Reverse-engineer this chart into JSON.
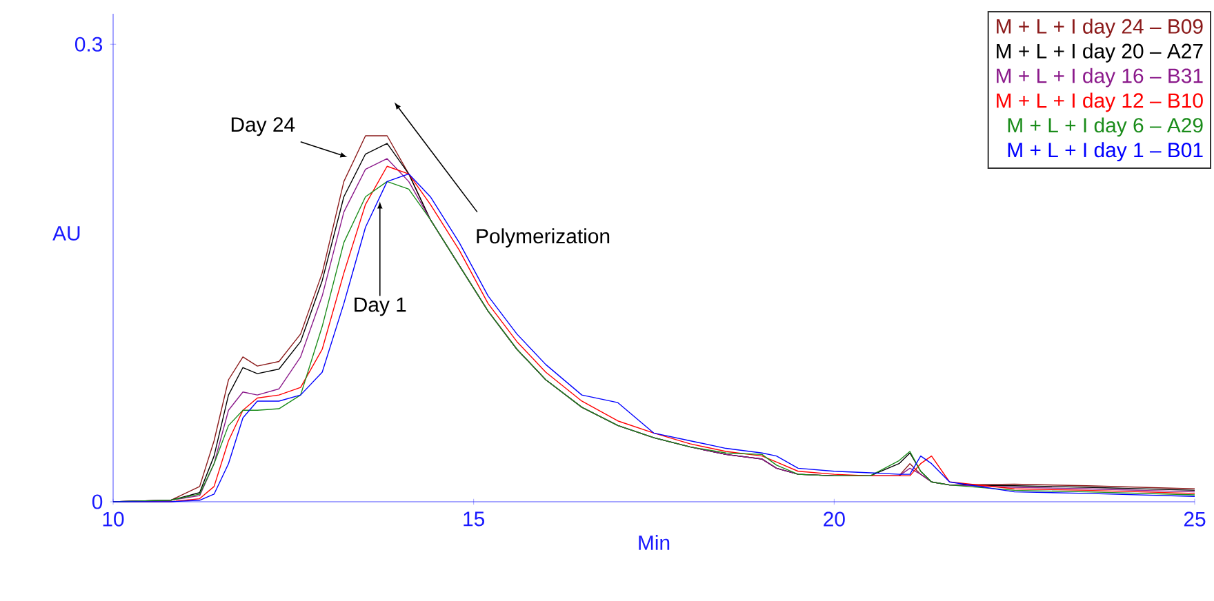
{
  "chart_data": {
    "type": "line",
    "xlabel": "Min",
    "ylabel": "AU",
    "x": [
      10,
      10.8,
      11.2,
      11.4,
      11.6,
      11.8,
      12.0,
      12.3,
      12.6,
      12.9,
      13.2,
      13.5,
      13.8,
      14.1,
      14.4,
      14.8,
      15.2,
      15.6,
      16.0,
      16.5,
      17.0,
      17.5,
      18.0,
      18.5,
      19.0,
      19.2,
      19.5,
      20.0,
      20.5,
      20.9,
      21.05,
      21.2,
      21.35,
      21.6,
      22.5,
      23.5,
      25
    ],
    "series": [
      {
        "name": "M + L + I day 24 – B09",
        "color": "#8b1a1a",
        "values": [
          0,
          0.001,
          0.01,
          0.04,
          0.08,
          0.095,
          0.089,
          0.092,
          0.11,
          0.15,
          0.21,
          0.24,
          0.24,
          0.215,
          0.185,
          0.155,
          0.125,
          0.1,
          0.08,
          0.062,
          0.05,
          0.042,
          0.036,
          0.031,
          0.028,
          0.022,
          0.018,
          0.017,
          0.017,
          0.017,
          0.025,
          0.018,
          0.013,
          0.011,
          0.0115,
          0.0105,
          0.0085
        ]
      },
      {
        "name": "M + L + I day 20 – A27",
        "color": "#000000",
        "values": [
          0,
          0.001,
          0.006,
          0.03,
          0.07,
          0.088,
          0.084,
          0.087,
          0.105,
          0.145,
          0.2,
          0.228,
          0.235,
          0.215,
          0.185,
          0.155,
          0.125,
          0.1,
          0.08,
          0.062,
          0.05,
          0.042,
          0.036,
          0.031,
          0.028,
          0.022,
          0.018,
          0.017,
          0.017,
          0.025,
          0.032,
          0.02,
          0.013,
          0.011,
          0.0105,
          0.0095,
          0.0075
        ]
      },
      {
        "name": "M + L + I day 16 – B31",
        "color": "#8b1a8b",
        "values": [
          0,
          0.001,
          0.004,
          0.025,
          0.06,
          0.072,
          0.07,
          0.074,
          0.095,
          0.135,
          0.19,
          0.218,
          0.225,
          0.21,
          0.185,
          0.155,
          0.125,
          0.1,
          0.08,
          0.062,
          0.05,
          0.042,
          0.036,
          0.031,
          0.028,
          0.022,
          0.018,
          0.017,
          0.017,
          0.017,
          0.022,
          0.018,
          0.013,
          0.011,
          0.0095,
          0.0085,
          0.0065
        ]
      },
      {
        "name": "M + L + I day 12 – B10",
        "color": "#ff0000",
        "values": [
          0,
          0,
          0.002,
          0.01,
          0.04,
          0.06,
          0.068,
          0.07,
          0.075,
          0.1,
          0.15,
          0.195,
          0.22,
          0.215,
          0.195,
          0.165,
          0.13,
          0.105,
          0.085,
          0.066,
          0.053,
          0.045,
          0.038,
          0.033,
          0.03,
          0.026,
          0.02,
          0.018,
          0.017,
          0.017,
          0.017,
          0.025,
          0.03,
          0.013,
          0.0085,
          0.0075,
          0.0055
        ]
      },
      {
        "name": "M + L + I day 6 – A29",
        "color": "#1a8c1a",
        "values": [
          0,
          0.001,
          0.005,
          0.025,
          0.05,
          0.06,
          0.06,
          0.061,
          0.07,
          0.115,
          0.17,
          0.2,
          0.21,
          0.205,
          0.185,
          0.155,
          0.125,
          0.1,
          0.08,
          0.062,
          0.05,
          0.042,
          0.036,
          0.032,
          0.031,
          0.024,
          0.018,
          0.017,
          0.017,
          0.027,
          0.033,
          0.02,
          0.013,
          0.011,
          0.0075,
          0.0065,
          0.0045
        ]
      },
      {
        "name": "M + L + I day 1 – B01",
        "color": "#0000ff",
        "values": [
          0,
          0,
          0.001,
          0.005,
          0.025,
          0.055,
          0.066,
          0.066,
          0.07,
          0.085,
          0.13,
          0.18,
          0.21,
          0.215,
          0.2,
          0.17,
          0.135,
          0.11,
          0.09,
          0.07,
          0.065,
          0.045,
          0.04,
          0.035,
          0.032,
          0.03,
          0.022,
          0.02,
          0.019,
          0.018,
          0.018,
          0.03,
          0.025,
          0.013,
          0.0065,
          0.0055,
          0.0035
        ]
      }
    ],
    "xlim": [
      10,
      25
    ],
    "ylim": [
      0,
      0.32
    ],
    "xticks": [
      10,
      15,
      20,
      25
    ],
    "yticks": [
      0,
      0.3
    ],
    "grid": false,
    "legend": "top right",
    "marker": "none",
    "line_style": "solid",
    "annotations": [
      {
        "text": "Day 24",
        "x": 13.3,
        "y": 0.228
      },
      {
        "text": "Day 1",
        "x": 13.7,
        "y": 0.2
      },
      "Polymerization"
    ]
  }
}
